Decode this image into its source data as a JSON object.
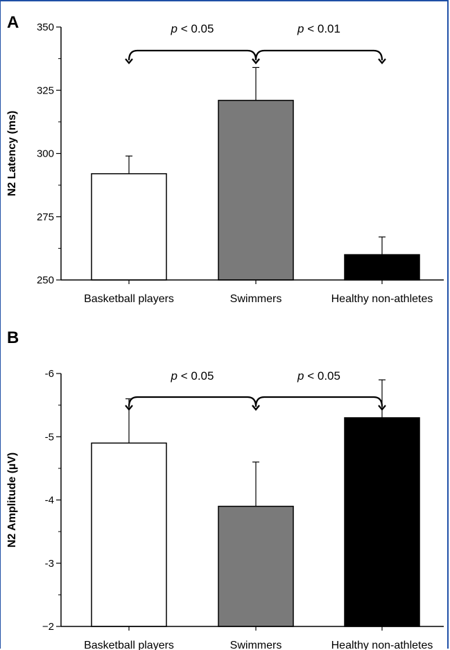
{
  "chart_data": [
    {
      "type": "bar",
      "panel_label": "A",
      "ylabel": "N2  Latency (ms)",
      "categories": [
        "Basketball players",
        "Swimmers",
        "Healthy non-athletes"
      ],
      "values": [
        292,
        321,
        260
      ],
      "errors": [
        7,
        13,
        7
      ],
      "ylim": [
        250,
        350
      ],
      "yticks": [
        250,
        275,
        300,
        325,
        350
      ],
      "ytick_labels": [
        "250",
        "275",
        "300",
        "325",
        "350"
      ],
      "inverted": false,
      "bar_colors": [
        "#ffffff",
        "#7a7a7a",
        "#000000"
      ],
      "comparisons": [
        {
          "from": 0,
          "to": 1,
          "label_p": "p",
          "label_rest": " < 0.05"
        },
        {
          "from": 1,
          "to": 2,
          "label_p": "p",
          "label_rest": " < 0.01"
        }
      ]
    },
    {
      "type": "bar",
      "panel_label": "B",
      "ylabel": "N2  Amplitude (µV)",
      "categories": [
        "Basketball players",
        "Swimmers",
        "Healthy non-athletes"
      ],
      "values": [
        -4.9,
        -3.9,
        -5.3
      ],
      "errors": [
        0.7,
        0.7,
        0.6
      ],
      "ylim": [
        -2,
        -6
      ],
      "yticks": [
        -2,
        -3,
        -4,
        -5,
        -6
      ],
      "ytick_labels": [
        "−2",
        "-3",
        "-4",
        "-5",
        "-6"
      ],
      "inverted": true,
      "bar_colors": [
        "#ffffff",
        "#7a7a7a",
        "#000000"
      ],
      "comparisons": [
        {
          "from": 0,
          "to": 1,
          "label_p": "p",
          "label_rest": " < 0.05"
        },
        {
          "from": 1,
          "to": 2,
          "label_p": "p",
          "label_rest": " < 0.05"
        }
      ]
    }
  ]
}
